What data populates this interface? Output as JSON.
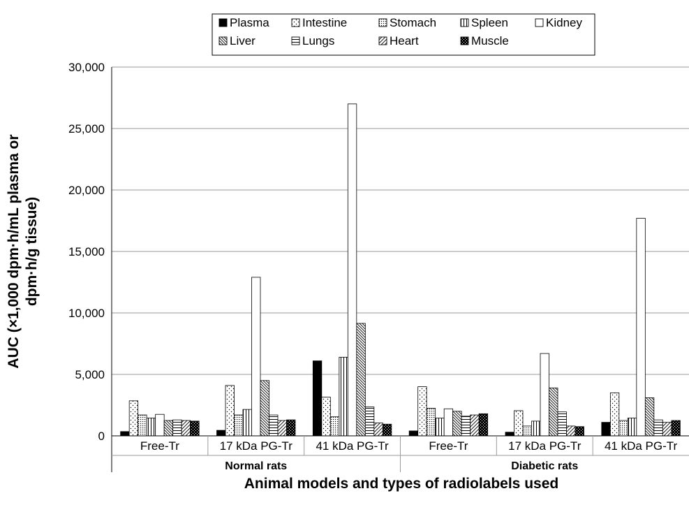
{
  "chart_data": {
    "type": "bar",
    "xlabel": "Animal models and types of radiolabels used",
    "ylabel": [
      "AUC (×1,000 dpm·h/mL plasma or",
      "dpm·h/g tissue)"
    ],
    "ylim": [
      0,
      30000
    ],
    "yticks": [
      "0",
      "5,000",
      "10,000",
      "15,000",
      "20,000",
      "25,000",
      "30,000"
    ],
    "ytick_values": [
      0,
      5000,
      10000,
      15000,
      20000,
      25000,
      30000
    ],
    "grid": "horizontal",
    "legend_position": "top",
    "groups": [
      {
        "label": "Normal rats",
        "categories": [
          "Free-Tr",
          "17 kDa PG-Tr",
          "41 kDa PG-Tr"
        ]
      },
      {
        "label": "Diabetic rats",
        "categories": [
          "Free-Tr",
          "17 kDa PG-Tr",
          "41 kDa PG-Tr"
        ]
      }
    ],
    "series": [
      {
        "name": "Plasma",
        "pattern": "solid-black",
        "values": [
          350,
          450,
          6100,
          400,
          300,
          1100
        ]
      },
      {
        "name": "Intestine",
        "pattern": "dots",
        "values": [
          2850,
          4100,
          3150,
          4000,
          2050,
          3500
        ]
      },
      {
        "name": "Stomach",
        "pattern": "dense-dots",
        "values": [
          1700,
          1700,
          1550,
          2250,
          800,
          1250
        ]
      },
      {
        "name": "Spleen",
        "pattern": "vertical-lines",
        "values": [
          1450,
          2150,
          6400,
          1450,
          1200,
          1450
        ]
      },
      {
        "name": "Kidney",
        "pattern": "white",
        "values": [
          1750,
          12900,
          27000,
          2200,
          6700,
          17700
        ]
      },
      {
        "name": "Liver",
        "pattern": "diagonal-lines",
        "values": [
          1250,
          4500,
          9150,
          2000,
          3900,
          3100
        ]
      },
      {
        "name": "Lungs",
        "pattern": "horizontal-lines",
        "values": [
          1300,
          1700,
          2350,
          1600,
          1950,
          1300
        ]
      },
      {
        "name": "Heart",
        "pattern": "wide-diagonal",
        "values": [
          1250,
          1250,
          1050,
          1700,
          800,
          1100
        ]
      },
      {
        "name": "Muscle",
        "pattern": "checker",
        "values": [
          1200,
          1300,
          950,
          1800,
          750,
          1250
        ]
      }
    ]
  }
}
